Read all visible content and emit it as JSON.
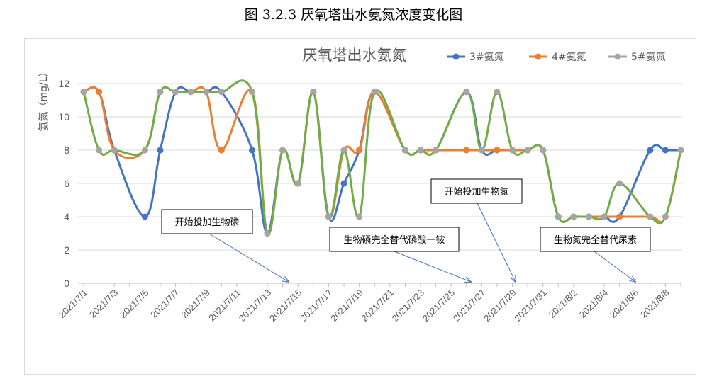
{
  "caption": "图 3.2.3  厌氧塔出水氨氮浓度变化图",
  "chart_data": {
    "type": "line",
    "title": "厌氧塔出水氨氮",
    "ylabel": "氨氮（mg/L）",
    "xlabel": "",
    "ylim": [
      0,
      12
    ],
    "yticks": [
      0,
      2,
      4,
      6,
      8,
      10,
      12
    ],
    "grid": true,
    "legend_position": "top-right",
    "x": [
      "2021/7/1",
      "2021/7/2",
      "2021/7/3",
      "2021/7/4",
      "2021/7/5",
      "2021/7/6",
      "2021/7/7",
      "2021/7/8",
      "2021/7/9",
      "2021/7/10",
      "2021/7/11",
      "2021/7/12",
      "2021/7/13",
      "2021/7/14",
      "2021/7/15",
      "2021/7/16",
      "2021/7/17",
      "2021/7/18",
      "2021/7/19",
      "2021/7/20",
      "2021/7/21",
      "2021/7/22",
      "2021/7/23",
      "2021/7/24",
      "2021/7/25",
      "2021/7/26",
      "2021/7/27",
      "2021/7/28",
      "2021/7/29",
      "2021/7/30",
      "2021/7/31",
      "2021/8/1",
      "2021/8/2",
      "2021/8/3",
      "2021/8/4",
      "2021/8/5",
      "2021/8/6",
      "2021/8/7",
      "2021/8/8",
      "2021/8/9"
    ],
    "xtick_labels": [
      "2021/7/1",
      "2021/7/3",
      "2021/7/5",
      "2021/7/7",
      "2021/7/9",
      "2021/7/11",
      "2021/7/13",
      "2021/7/15",
      "2021/7/17",
      "2021/7/19",
      "2021/7/21",
      "2021/7/23",
      "2021/7/25",
      "2021/7/27",
      "2021/7/29",
      "2021/7/31",
      "2021/8/2",
      "2021/8/4",
      "2021/8/6",
      "2021/8/8"
    ],
    "series": [
      {
        "name": "3#氨氮",
        "color": "#4472c4",
        "values": [
          11.5,
          11.5,
          8,
          null,
          4,
          8,
          11.5,
          11.5,
          11.5,
          11.5,
          null,
          8,
          3,
          8,
          6,
          11.5,
          4,
          6,
          8,
          11.5,
          null,
          8,
          8,
          8,
          null,
          11.5,
          8,
          8,
          8,
          8,
          8,
          4,
          4,
          4,
          4,
          4,
          null,
          8,
          8,
          8
        ]
      },
      {
        "name": "4#氨氮",
        "color": "#ed7d31",
        "values": [
          11.5,
          11.5,
          8,
          null,
          8,
          11.5,
          11.5,
          11.5,
          11.5,
          8,
          null,
          11.5,
          3,
          8,
          6,
          11.5,
          4,
          8,
          8,
          11.5,
          null,
          8,
          8,
          8,
          null,
          8,
          8,
          8,
          8,
          8,
          8,
          4,
          4,
          4,
          4,
          4,
          null,
          4,
          4,
          8
        ]
      },
      {
        "name": "5#氨氮",
        "color": "#a5a5a5",
        "line_color": "#70ad47",
        "values": [
          11.5,
          8,
          8,
          null,
          8,
          11.5,
          11.5,
          11.5,
          11.5,
          11.5,
          null,
          11.5,
          3,
          8,
          6,
          11.5,
          4,
          8,
          4,
          11.5,
          null,
          8,
          8,
          8,
          null,
          11.5,
          8,
          11.5,
          8,
          8,
          8,
          4,
          4,
          4,
          4,
          6,
          null,
          4,
          4,
          8
        ]
      }
    ],
    "annotations": [
      {
        "text": "开始投加生物磷",
        "points_to": "2021/7/15"
      },
      {
        "text": "生物磷完全替代磷酸一铵",
        "points_to": "2021/7/27"
      },
      {
        "text": "开始投加生物氮",
        "points_to": "2021/7/29"
      },
      {
        "text": "生物氮完全替代尿素",
        "points_to": "2021/8/7"
      }
    ]
  }
}
